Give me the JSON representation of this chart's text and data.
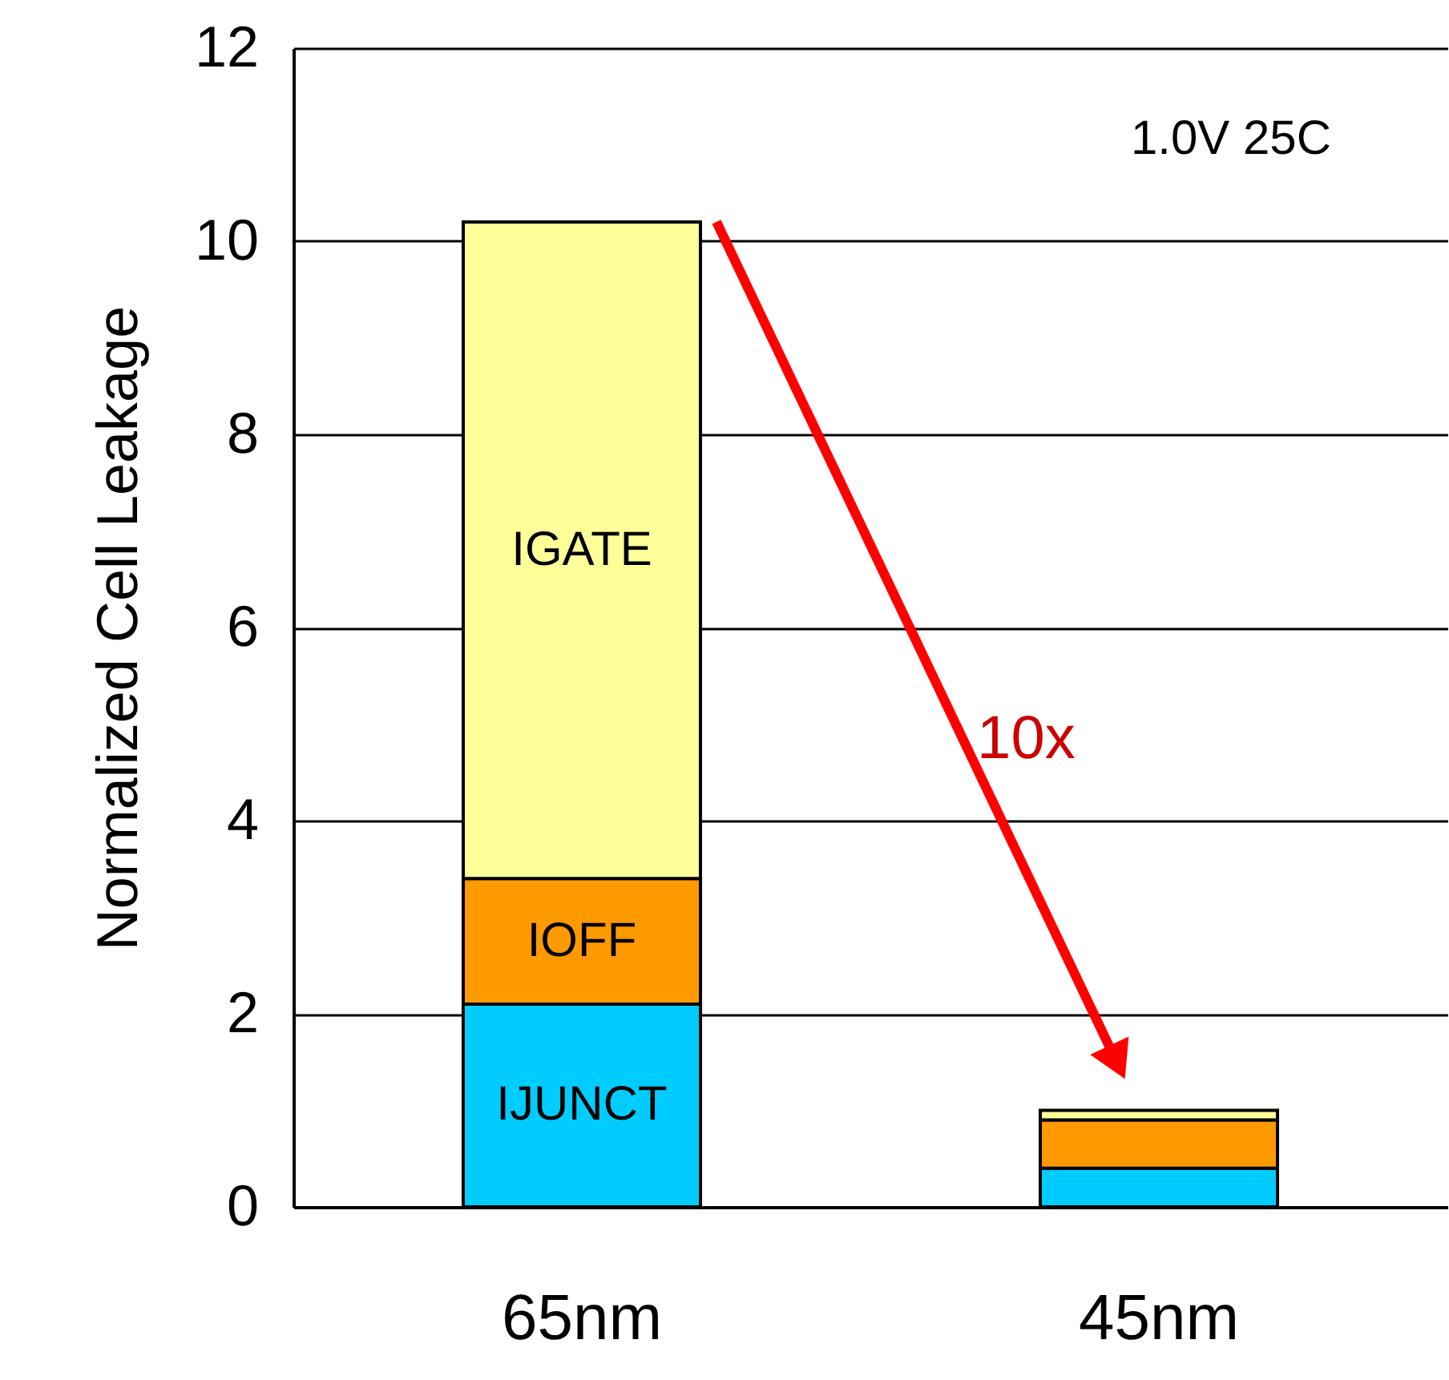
{
  "chart_data": {
    "type": "bar",
    "stacked": true,
    "ylabel": "Normalized Cell Leakage",
    "categories": [
      "65nm",
      "45nm"
    ],
    "series": [
      {
        "name": "IJUNCT",
        "color": "#00ccff",
        "values": [
          2.1,
          0.4
        ]
      },
      {
        "name": "IOFF",
        "color": "#ff9900",
        "values": [
          1.3,
          0.5
        ]
      },
      {
        "name": "IGATE",
        "color": "#ffff99",
        "values": [
          6.8,
          0.1
        ]
      }
    ],
    "ylim": [
      0,
      12
    ],
    "yticks": [
      0,
      2,
      4,
      6,
      8,
      10,
      12
    ],
    "grid": "y",
    "annotations": [
      "1.0V 25C",
      "10x"
    ]
  }
}
